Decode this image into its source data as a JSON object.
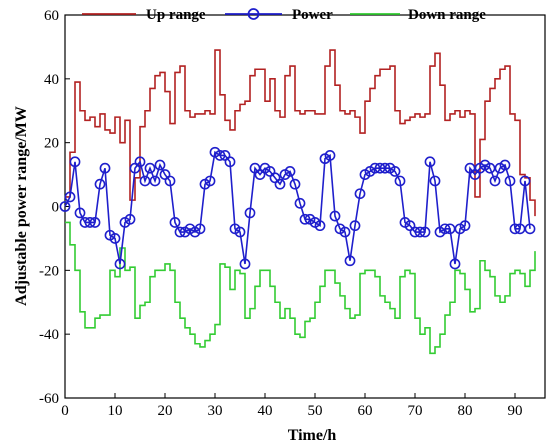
{
  "chart_data": {
    "type": "line",
    "xlabel": "Time/h",
    "ylabel": "Adjustable power range/MW",
    "xlim": [
      0,
      96
    ],
    "ylim": [
      -60,
      60
    ],
    "xticks": [
      0,
      10,
      20,
      30,
      40,
      50,
      60,
      70,
      80,
      90
    ],
    "yticks": [
      -60,
      -40,
      -20,
      0,
      20,
      40,
      60
    ],
    "grid": false,
    "legend": "top",
    "colors": {
      "up": "#b22222",
      "power": "#1f1fcc",
      "down": "#33cc33"
    },
    "series": [
      {
        "name": "Up range",
        "step": true,
        "x": [
          0,
          1,
          2,
          3,
          4,
          5,
          6,
          7,
          8,
          9,
          10,
          11,
          12,
          13,
          14,
          15,
          16,
          17,
          18,
          19,
          20,
          21,
          22,
          23,
          24,
          25,
          26,
          27,
          28,
          29,
          30,
          31,
          32,
          33,
          34,
          35,
          36,
          37,
          38,
          39,
          40,
          41,
          42,
          43,
          44,
          45,
          46,
          47,
          48,
          49,
          50,
          51,
          52,
          53,
          54,
          55,
          56,
          57,
          58,
          59,
          60,
          61,
          62,
          63,
          64,
          65,
          66,
          67,
          68,
          69,
          70,
          71,
          72,
          73,
          74,
          75,
          76,
          77,
          78,
          79,
          80,
          81,
          82,
          83,
          84,
          85,
          86,
          87,
          88,
          89,
          90,
          91,
          92,
          93,
          94
        ],
        "values": [
          3,
          17,
          39,
          30,
          27,
          28,
          25,
          29,
          24,
          23,
          28,
          20,
          27,
          2,
          9,
          25,
          30,
          37,
          41,
          42,
          36,
          26,
          42,
          44,
          30,
          28,
          29,
          29,
          30,
          29,
          49,
          35,
          27,
          24,
          30,
          32,
          33,
          41,
          43,
          43,
          33,
          40,
          30,
          28,
          41,
          44,
          30,
          29,
          30,
          30,
          29,
          29,
          44,
          49,
          38,
          30,
          29,
          30,
          28,
          23,
          33,
          37,
          41,
          43,
          43,
          44,
          30,
          26,
          27,
          28,
          29,
          28,
          29,
          44,
          48,
          38,
          27,
          29,
          30,
          28,
          30,
          29,
          3,
          21,
          33,
          37,
          40,
          43,
          44,
          29,
          27,
          10,
          9,
          2,
          -3
        ]
      },
      {
        "name": "Power",
        "x": [
          0,
          1,
          2,
          3,
          4,
          5,
          6,
          7,
          8,
          9,
          10,
          11,
          12,
          13,
          14,
          15,
          16,
          17,
          18,
          19,
          20,
          21,
          22,
          23,
          24,
          25,
          26,
          27,
          28,
          29,
          30,
          31,
          32,
          33,
          34,
          35,
          36,
          37,
          38,
          39,
          40,
          41,
          42,
          43,
          44,
          45,
          46,
          47,
          48,
          49,
          50,
          51,
          52,
          53,
          54,
          55,
          56,
          57,
          58,
          59,
          60,
          61,
          62,
          63,
          64,
          65,
          66,
          67,
          68,
          69,
          70,
          71,
          72,
          73,
          74,
          75,
          76,
          77,
          78,
          79,
          80,
          81,
          82,
          83,
          84,
          85,
          86,
          87,
          88,
          89,
          90,
          91,
          92,
          93
        ],
        "values": [
          0,
          3,
          14,
          -2,
          -5,
          -5,
          -5,
          7,
          12,
          -9,
          -10,
          -18,
          -5,
          -4,
          12,
          14,
          8,
          12,
          8,
          13,
          10,
          8,
          -5,
          -8,
          -8,
          -7,
          -8,
          -7,
          7,
          8,
          17,
          16,
          16,
          14,
          -7,
          -8,
          -18,
          -2,
          12,
          10,
          12,
          11,
          9,
          7,
          10,
          11,
          7,
          1,
          -4,
          -4,
          -5,
          -6,
          15,
          16,
          -3,
          -7,
          -8,
          -17,
          -6,
          4,
          10,
          11,
          12,
          12,
          12,
          12,
          11,
          8,
          -5,
          -6,
          -8,
          -8,
          -8,
          14,
          8,
          -8,
          -7,
          -7,
          -18,
          -7,
          -6,
          12,
          10,
          12,
          13,
          12,
          8,
          12,
          13,
          8,
          -7,
          -7,
          8,
          -7
        ]
      },
      {
        "name": "Down range",
        "step": true,
        "x": [
          0,
          1,
          2,
          3,
          4,
          5,
          6,
          7,
          8,
          9,
          10,
          11,
          12,
          13,
          14,
          15,
          16,
          17,
          18,
          19,
          20,
          21,
          22,
          23,
          24,
          25,
          26,
          27,
          28,
          29,
          30,
          31,
          32,
          33,
          34,
          35,
          36,
          37,
          38,
          39,
          40,
          41,
          42,
          43,
          44,
          45,
          46,
          47,
          48,
          49,
          50,
          51,
          52,
          53,
          54,
          55,
          56,
          57,
          58,
          59,
          60,
          61,
          62,
          63,
          64,
          65,
          66,
          67,
          68,
          69,
          70,
          71,
          72,
          73,
          74,
          75,
          76,
          77,
          78,
          79,
          80,
          81,
          82,
          83,
          84,
          85,
          86,
          87,
          88,
          89,
          90,
          91,
          92,
          93,
          94
        ],
        "values": [
          -5,
          -12,
          -20,
          -33,
          -38,
          -38,
          -35,
          -34,
          -34,
          -20,
          -22,
          -13,
          -20,
          -19,
          -35,
          -31,
          -30,
          -22,
          -20,
          -20,
          -18,
          -20,
          -30,
          -35,
          -38,
          -40,
          -43,
          -44,
          -42,
          -40,
          -37,
          -18,
          -19,
          -26,
          -20,
          -21,
          -35,
          -32,
          -25,
          -20,
          -20,
          -25,
          -30,
          -35,
          -32,
          -35,
          -40,
          -41,
          -36,
          -35,
          -30,
          -25,
          -20,
          -20,
          -24,
          -28,
          -32,
          -35,
          -34,
          -21,
          -20,
          -20,
          -22,
          -28,
          -30,
          -32,
          -35,
          -22,
          -20,
          -21,
          -35,
          -40,
          -38,
          -46,
          -44,
          -40,
          -34,
          -30,
          -20,
          -21,
          -26,
          -33,
          -32,
          -17,
          -20,
          -22,
          -28,
          -30,
          -28,
          -21,
          -20,
          -21,
          -25,
          -20,
          -14
        ]
      }
    ]
  }
}
